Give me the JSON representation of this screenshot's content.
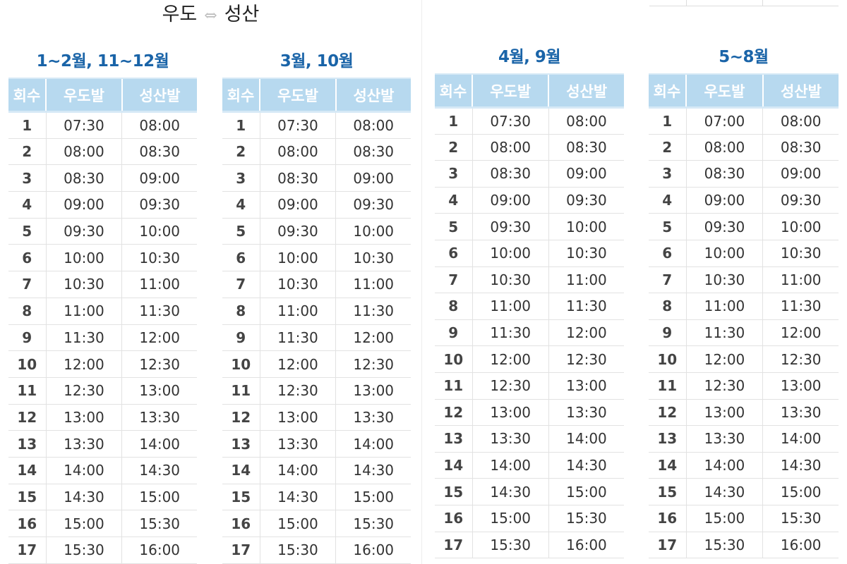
{
  "title": {
    "left": "우도",
    "arrow": "⇔",
    "right": "성산"
  },
  "headers": [
    "회수",
    "우도발",
    "성산발"
  ],
  "tables": [
    {
      "season": "1~2월, 11~12월",
      "rows": [
        [
          "1",
          "07:30",
          "08:00"
        ],
        [
          "2",
          "08:00",
          "08:30"
        ],
        [
          "3",
          "08:30",
          "09:00"
        ],
        [
          "4",
          "09:00",
          "09:30"
        ],
        [
          "5",
          "09:30",
          "10:00"
        ],
        [
          "6",
          "10:00",
          "10:30"
        ],
        [
          "7",
          "10:30",
          "11:00"
        ],
        [
          "8",
          "11:00",
          "11:30"
        ],
        [
          "9",
          "11:30",
          "12:00"
        ],
        [
          "10",
          "12:00",
          "12:30"
        ],
        [
          "11",
          "12:30",
          "13:00"
        ],
        [
          "12",
          "13:00",
          "13:30"
        ],
        [
          "13",
          "13:30",
          "14:00"
        ],
        [
          "14",
          "14:00",
          "14:30"
        ],
        [
          "15",
          "14:30",
          "15:00"
        ],
        [
          "16",
          "15:00",
          "15:30"
        ],
        [
          "17",
          "15:30",
          "16:00"
        ]
      ]
    },
    {
      "season": "3월, 10월",
      "rows": [
        [
          "1",
          "07:30",
          "08:00"
        ],
        [
          "2",
          "08:00",
          "08:30"
        ],
        [
          "3",
          "08:30",
          "09:00"
        ],
        [
          "4",
          "09:00",
          "09:30"
        ],
        [
          "5",
          "09:30",
          "10:00"
        ],
        [
          "6",
          "10:00",
          "10:30"
        ],
        [
          "7",
          "10:30",
          "11:00"
        ],
        [
          "8",
          "11:00",
          "11:30"
        ],
        [
          "9",
          "11:30",
          "12:00"
        ],
        [
          "10",
          "12:00",
          "12:30"
        ],
        [
          "11",
          "12:30",
          "13:00"
        ],
        [
          "12",
          "13:00",
          "13:30"
        ],
        [
          "13",
          "13:30",
          "14:00"
        ],
        [
          "14",
          "14:00",
          "14:30"
        ],
        [
          "15",
          "14:30",
          "15:00"
        ],
        [
          "16",
          "15:00",
          "15:30"
        ],
        [
          "17",
          "15:30",
          "16:00"
        ]
      ]
    },
    {
      "season": "4월, 9월",
      "rows": [
        [
          "1",
          "07:30",
          "08:00"
        ],
        [
          "2",
          "08:00",
          "08:30"
        ],
        [
          "3",
          "08:30",
          "09:00"
        ],
        [
          "4",
          "09:00",
          "09:30"
        ],
        [
          "5",
          "09:30",
          "10:00"
        ],
        [
          "6",
          "10:00",
          "10:30"
        ],
        [
          "7",
          "10:30",
          "11:00"
        ],
        [
          "8",
          "11:00",
          "11:30"
        ],
        [
          "9",
          "11:30",
          "12:00"
        ],
        [
          "10",
          "12:00",
          "12:30"
        ],
        [
          "11",
          "12:30",
          "13:00"
        ],
        [
          "12",
          "13:00",
          "13:30"
        ],
        [
          "13",
          "13:30",
          "14:00"
        ],
        [
          "14",
          "14:00",
          "14:30"
        ],
        [
          "15",
          "14:30",
          "15:00"
        ],
        [
          "16",
          "15:00",
          "15:30"
        ],
        [
          "17",
          "15:30",
          "16:00"
        ]
      ]
    },
    {
      "season": "5~8월",
      "rows": [
        [
          "1",
          "07:00",
          "08:00"
        ],
        [
          "2",
          "08:00",
          "08:30"
        ],
        [
          "3",
          "08:30",
          "09:00"
        ],
        [
          "4",
          "09:00",
          "09:30"
        ],
        [
          "5",
          "09:30",
          "10:00"
        ],
        [
          "6",
          "10:00",
          "10:30"
        ],
        [
          "7",
          "10:30",
          "11:00"
        ],
        [
          "8",
          "11:00",
          "11:30"
        ],
        [
          "9",
          "11:30",
          "12:00"
        ],
        [
          "10",
          "12:00",
          "12:30"
        ],
        [
          "11",
          "12:30",
          "13:00"
        ],
        [
          "12",
          "13:00",
          "13:30"
        ],
        [
          "13",
          "13:30",
          "14:00"
        ],
        [
          "14",
          "14:00",
          "14:30"
        ],
        [
          "15",
          "14:30",
          "15:00"
        ],
        [
          "16",
          "15:00",
          "15:30"
        ],
        [
          "17",
          "15:30",
          "16:00"
        ]
      ]
    }
  ],
  "colors": {
    "season_title": "#1a64a8",
    "header_bg": "#b7d9ef"
  }
}
